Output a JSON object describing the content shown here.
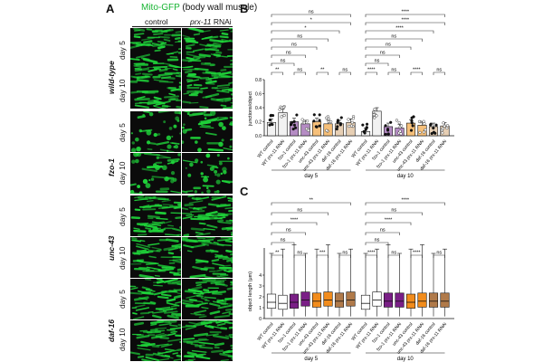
{
  "panel_a": {
    "letter": "A",
    "title_marker": "Mito-GFP",
    "title_rest": " (body wall muscle)",
    "col_control": "control",
    "col_rnai_gene": "prx-11",
    "col_rnai_suffix": " RNAi",
    "groups": [
      {
        "name": "wild-type",
        "days": [
          "day 5",
          "day 10"
        ]
      },
      {
        "name": "fzo-1",
        "days": [
          "day 5",
          "day 10"
        ]
      },
      {
        "name": "unc-43",
        "days": [
          "day 5",
          "day 10"
        ]
      },
      {
        "name": "daf-16",
        "days": [
          "day 5",
          "day 10"
        ]
      }
    ],
    "green": "#1fd43a"
  },
  "chart_data": [
    {
      "panel": "B",
      "type": "bar",
      "ylabel": "junctions/object",
      "ylim": [
        0,
        0.8
      ],
      "yticks": [
        "0.0",
        "0.2",
        "0.4",
        "0.6",
        "0.8"
      ],
      "categories": [
        "WT control",
        "WT prx-11 RNAi",
        "fzo-1 control",
        "fzo-1 prx-11 RNAi",
        "unc-43 control",
        "unc-43 prx-11 RNAi",
        "daf-16 control",
        "daf-16 prx-11 RNAi"
      ],
      "day_labels": [
        "day 5",
        "day 10"
      ],
      "values_day5": [
        0.19,
        0.33,
        0.2,
        0.17,
        0.2,
        0.17,
        0.17,
        0.19
      ],
      "values_day10": [
        0.06,
        0.35,
        0.13,
        0.11,
        0.18,
        0.15,
        0.13,
        0.14
      ],
      "colors": [
        "#f2f2f2",
        "#f2f2f2",
        "#b58cc4",
        "#b58cc4",
        "#f6c07a",
        "#f6c07a",
        "#e7cfb4",
        "#e7cfb4"
      ],
      "significance_day5": [
        "**",
        "ns",
        "**",
        "ns",
        "ns",
        "ns",
        "ns",
        "ns",
        "*",
        "*",
        "ns"
      ],
      "significance_day10": [
        "****",
        "ns",
        "****",
        "ns",
        "ns",
        "ns",
        "ns",
        "ns",
        "****",
        "****",
        "****"
      ]
    },
    {
      "panel": "C",
      "type": "box",
      "ylabel": "object length (μm)",
      "yticks": [
        "0",
        "1",
        "2",
        "3",
        "4"
      ],
      "categories": [
        "WT control",
        "WT prx-11 RNAi",
        "fzo-1 control",
        "fzo-1 prx-11 RNAi",
        "unc-43 control",
        "unc-43 prx-11 RNAi",
        "daf-16 control",
        "daf-16 prx-11 RNAi"
      ],
      "day_labels": [
        "day 5",
        "day 10"
      ],
      "median_day5": [
        1.5,
        1.4,
        1.5,
        1.7,
        1.6,
        1.7,
        1.6,
        1.7
      ],
      "median_day10": [
        1.4,
        1.7,
        1.6,
        1.6,
        1.5,
        1.6,
        1.6,
        1.6
      ],
      "colors": [
        "#ffffff",
        "#ffffff",
        "#7a1f86",
        "#7a1f86",
        "#f28c1c",
        "#f28c1c",
        "#b07a4a",
        "#b07a4a"
      ],
      "significance_day5": [
        "**",
        "ns",
        "***",
        "ns",
        "ns",
        "ns",
        "****",
        "ns",
        "**"
      ],
      "significance_day10": [
        "****",
        "ns",
        "****",
        "ns",
        "ns",
        "ns",
        "****",
        "ns",
        "****"
      ]
    }
  ]
}
